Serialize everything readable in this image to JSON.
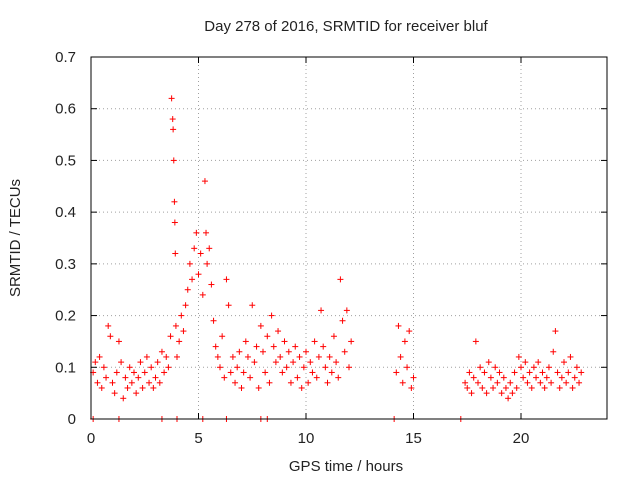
{
  "chart_data": {
    "type": "scatter",
    "title": "Day 278 of 2016, SRMTID for receiver bluf",
    "xlabel": "GPS time / hours",
    "ylabel": "SRMTID / TECUs",
    "xlim": [
      0,
      24
    ],
    "ylim": [
      0,
      0.7
    ],
    "x_ticks": [
      0,
      5,
      10,
      15,
      20
    ],
    "x_tick_labels": [
      "0",
      "5",
      "10",
      "15",
      "20"
    ],
    "y_ticks": [
      0,
      0.1,
      0.2,
      0.3,
      0.4,
      0.5,
      0.6,
      0.7
    ],
    "y_tick_labels": [
      "0",
      "0.1",
      "0.2",
      "0.3",
      "0.4",
      "0.5",
      "0.6",
      "0.7"
    ],
    "grid": true,
    "marker": "+",
    "color": "#ff0000",
    "series": [
      {
        "name": "SRMTID",
        "points": [
          [
            0.1,
            0.09
          ],
          [
            0.2,
            0.11
          ],
          [
            0.3,
            0.07
          ],
          [
            0.4,
            0.12
          ],
          [
            0.5,
            0.06
          ],
          [
            0.6,
            0.1
          ],
          [
            0.7,
            0.08
          ],
          [
            0.8,
            0.18
          ],
          [
            0.9,
            0.16
          ],
          [
            1.0,
            0.07
          ],
          [
            1.1,
            0.05
          ],
          [
            1.2,
            0.09
          ],
          [
            1.3,
            0.15
          ],
          [
            1.4,
            0.11
          ],
          [
            1.5,
            0.04
          ],
          [
            1.6,
            0.08
          ],
          [
            1.7,
            0.06
          ],
          [
            1.8,
            0.1
          ],
          [
            1.9,
            0.07
          ],
          [
            2.0,
            0.09
          ],
          [
            2.1,
            0.05
          ],
          [
            2.2,
            0.08
          ],
          [
            2.3,
            0.11
          ],
          [
            2.4,
            0.06
          ],
          [
            2.5,
            0.09
          ],
          [
            2.6,
            0.12
          ],
          [
            2.7,
            0.07
          ],
          [
            2.8,
            0.1
          ],
          [
            2.9,
            0.06
          ],
          [
            3.0,
            0.08
          ],
          [
            3.1,
            0.11
          ],
          [
            3.2,
            0.07
          ],
          [
            3.3,
            0.13
          ],
          [
            3.4,
            0.09
          ],
          [
            3.5,
            0.12
          ],
          [
            3.6,
            0.1
          ],
          [
            3.7,
            0.16
          ],
          [
            3.75,
            0.62
          ],
          [
            3.8,
            0.58
          ],
          [
            3.82,
            0.56
          ],
          [
            3.85,
            0.5
          ],
          [
            3.88,
            0.42
          ],
          [
            3.9,
            0.38
          ],
          [
            3.92,
            0.32
          ],
          [
            3.95,
            0.18
          ],
          [
            4.0,
            0.12
          ],
          [
            4.1,
            0.15
          ],
          [
            4.2,
            0.2
          ],
          [
            4.3,
            0.17
          ],
          [
            4.4,
            0.22
          ],
          [
            4.5,
            0.25
          ],
          [
            4.6,
            0.3
          ],
          [
            4.7,
            0.27
          ],
          [
            4.8,
            0.33
          ],
          [
            4.9,
            0.36
          ],
          [
            5.0,
            0.28
          ],
          [
            5.1,
            0.32
          ],
          [
            5.2,
            0.24
          ],
          [
            5.3,
            0.46
          ],
          [
            5.35,
            0.36
          ],
          [
            5.4,
            0.3
          ],
          [
            5.5,
            0.33
          ],
          [
            5.6,
            0.26
          ],
          [
            5.7,
            0.19
          ],
          [
            5.8,
            0.14
          ],
          [
            5.9,
            0.12
          ],
          [
            6.0,
            0.1
          ],
          [
            6.1,
            0.16
          ],
          [
            6.2,
            0.08
          ],
          [
            6.3,
            0.27
          ],
          [
            6.4,
            0.22
          ],
          [
            6.5,
            0.09
          ],
          [
            6.6,
            0.12
          ],
          [
            6.7,
            0.07
          ],
          [
            6.8,
            0.1
          ],
          [
            6.9,
            0.13
          ],
          [
            7.0,
            0.06
          ],
          [
            7.1,
            0.09
          ],
          [
            7.2,
            0.15
          ],
          [
            7.3,
            0.12
          ],
          [
            7.4,
            0.08
          ],
          [
            7.5,
            0.22
          ],
          [
            7.6,
            0.11
          ],
          [
            7.7,
            0.14
          ],
          [
            7.8,
            0.06
          ],
          [
            7.9,
            0.18
          ],
          [
            8.0,
            0.13
          ],
          [
            8.1,
            0.09
          ],
          [
            8.2,
            0.16
          ],
          [
            8.3,
            0.07
          ],
          [
            8.4,
            0.2
          ],
          [
            8.5,
            0.14
          ],
          [
            8.6,
            0.11
          ],
          [
            8.7,
            0.17
          ],
          [
            8.8,
            0.12
          ],
          [
            8.9,
            0.09
          ],
          [
            9.0,
            0.15
          ],
          [
            9.1,
            0.1
          ],
          [
            9.2,
            0.13
          ],
          [
            9.3,
            0.07
          ],
          [
            9.4,
            0.11
          ],
          [
            9.5,
            0.14
          ],
          [
            9.6,
            0.08
          ],
          [
            9.7,
            0.12
          ],
          [
            9.8,
            0.06
          ],
          [
            9.9,
            0.1
          ],
          [
            10.0,
            0.13
          ],
          [
            10.1,
            0.07
          ],
          [
            10.2,
            0.11
          ],
          [
            10.3,
            0.09
          ],
          [
            10.4,
            0.15
          ],
          [
            10.5,
            0.08
          ],
          [
            10.6,
            0.12
          ],
          [
            10.7,
            0.21
          ],
          [
            10.8,
            0.14
          ],
          [
            10.9,
            0.1
          ],
          [
            11.0,
            0.07
          ],
          [
            11.1,
            0.12
          ],
          [
            11.2,
            0.09
          ],
          [
            11.3,
            0.16
          ],
          [
            11.4,
            0.11
          ],
          [
            11.5,
            0.08
          ],
          [
            11.6,
            0.27
          ],
          [
            11.7,
            0.19
          ],
          [
            11.8,
            0.13
          ],
          [
            11.9,
            0.21
          ],
          [
            12.0,
            0.1
          ],
          [
            12.1,
            0.15
          ],
          [
            14.2,
            0.09
          ],
          [
            14.3,
            0.18
          ],
          [
            14.4,
            0.12
          ],
          [
            14.5,
            0.07
          ],
          [
            14.6,
            0.15
          ],
          [
            14.7,
            0.1
          ],
          [
            14.8,
            0.17
          ],
          [
            14.9,
            0.06
          ],
          [
            15.0,
            0.08
          ],
          [
            17.4,
            0.07
          ],
          [
            17.5,
            0.06
          ],
          [
            17.6,
            0.09
          ],
          [
            17.7,
            0.05
          ],
          [
            17.8,
            0.08
          ],
          [
            17.9,
            0.15
          ],
          [
            18.0,
            0.07
          ],
          [
            18.1,
            0.1
          ],
          [
            18.2,
            0.06
          ],
          [
            18.3,
            0.09
          ],
          [
            18.4,
            0.05
          ],
          [
            18.5,
            0.11
          ],
          [
            18.6,
            0.08
          ],
          [
            18.7,
            0.06
          ],
          [
            18.8,
            0.1
          ],
          [
            18.9,
            0.07
          ],
          [
            19.0,
            0.09
          ],
          [
            19.1,
            0.05
          ],
          [
            19.2,
            0.08
          ],
          [
            19.3,
            0.06
          ],
          [
            19.4,
            0.04
          ],
          [
            19.5,
            0.07
          ],
          [
            19.6,
            0.05
          ],
          [
            19.7,
            0.09
          ],
          [
            19.8,
            0.06
          ],
          [
            19.9,
            0.12
          ],
          [
            20.0,
            0.1
          ],
          [
            20.1,
            0.08
          ],
          [
            20.2,
            0.11
          ],
          [
            20.3,
            0.07
          ],
          [
            20.4,
            0.09
          ],
          [
            20.5,
            0.06
          ],
          [
            20.6,
            0.1
          ],
          [
            20.7,
            0.08
          ],
          [
            20.8,
            0.11
          ],
          [
            20.9,
            0.07
          ],
          [
            21.0,
            0.09
          ],
          [
            21.1,
            0.06
          ],
          [
            21.2,
            0.08
          ],
          [
            21.3,
            0.1
          ],
          [
            21.4,
            0.07
          ],
          [
            21.5,
            0.13
          ],
          [
            21.6,
            0.17
          ],
          [
            21.7,
            0.09
          ],
          [
            21.8,
            0.06
          ],
          [
            21.9,
            0.08
          ],
          [
            22.0,
            0.11
          ],
          [
            22.1,
            0.07
          ],
          [
            22.2,
            0.09
          ],
          [
            22.3,
            0.12
          ],
          [
            22.4,
            0.06
          ],
          [
            22.5,
            0.08
          ],
          [
            22.6,
            0.1
          ],
          [
            22.7,
            0.07
          ],
          [
            22.8,
            0.09
          ]
        ]
      }
    ],
    "baseline_points": [
      0.1,
      1.3,
      3.3,
      4.0,
      5.2,
      6.3,
      7.9,
      8.2,
      14.1,
      17.2
    ]
  }
}
